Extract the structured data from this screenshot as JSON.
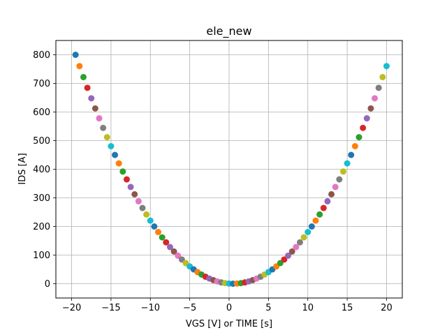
{
  "chart_data": {
    "type": "scatter",
    "title": "ele_new",
    "xlabel": "VGS [V] or TIME [s]",
    "ylabel": "IDS [A]",
    "xlim": [
      -22,
      22
    ],
    "ylim": [
      -50,
      850
    ],
    "xticks": [
      -20,
      -15,
      -10,
      -5,
      0,
      5,
      10,
      15,
      20
    ],
    "yticks": [
      0,
      100,
      200,
      300,
      400,
      500,
      600,
      700,
      800
    ],
    "grid": true,
    "legend": "none",
    "palette": [
      "#1f77b4",
      "#ff7f0e",
      "#2ca02c",
      "#d62728",
      "#9467bd",
      "#8c564b",
      "#e377c2",
      "#7f7f7f",
      "#bcbd22",
      "#17becf"
    ],
    "x": [
      -19.5,
      -19.0,
      -18.5,
      -18.0,
      -17.5,
      -17.0,
      -16.5,
      -16.0,
      -15.5,
      -15.0,
      -14.5,
      -14.0,
      -13.5,
      -13.0,
      -12.5,
      -12.0,
      -11.5,
      -11.0,
      -10.5,
      -10.0,
      -9.5,
      -9.0,
      -8.5,
      -8.0,
      -7.5,
      -7.0,
      -6.5,
      -6.0,
      -5.5,
      -5.0,
      -4.5,
      -4.0,
      -3.5,
      -3.0,
      -2.5,
      -2.0,
      -1.5,
      -1.0,
      -0.5,
      0.0,
      0.5,
      1.0,
      1.5,
      2.0,
      2.5,
      3.0,
      3.5,
      4.0,
      4.5,
      5.0,
      5.5,
      6.0,
      6.5,
      7.0,
      7.5,
      8.0,
      8.5,
      9.0,
      9.5,
      10.0,
      10.5,
      11.0,
      11.5,
      12.0,
      12.5,
      13.0,
      13.5,
      14.0,
      14.5,
      15.0,
      15.5,
      16.0,
      16.5,
      17.0,
      17.5,
      18.0,
      18.5,
      19.0,
      19.5,
      20.0
    ],
    "y": [
      800,
      760.5,
      722,
      684.5,
      648,
      612.5,
      578,
      544.5,
      512,
      480.5,
      450,
      420.5,
      392,
      364.5,
      338,
      312.5,
      288,
      264.5,
      242,
      220.5,
      200,
      180.5,
      162,
      144.5,
      128,
      112.5,
      98,
      84.5,
      72,
      60.5,
      50,
      40.5,
      32,
      24.5,
      18,
      12.5,
      8,
      4.5,
      2,
      0.5,
      0,
      0.5,
      2,
      4.5,
      8,
      12.5,
      18,
      24.5,
      32,
      40.5,
      50,
      60.5,
      72,
      84.5,
      98,
      112.5,
      128,
      144.5,
      162,
      180.5,
      200,
      220.5,
      242,
      264.5,
      288,
      312.5,
      338,
      364.5,
      392,
      420.5,
      450,
      480.5,
      512,
      544.5,
      578,
      612.5,
      648,
      684.5,
      722,
      760.5
    ]
  }
}
